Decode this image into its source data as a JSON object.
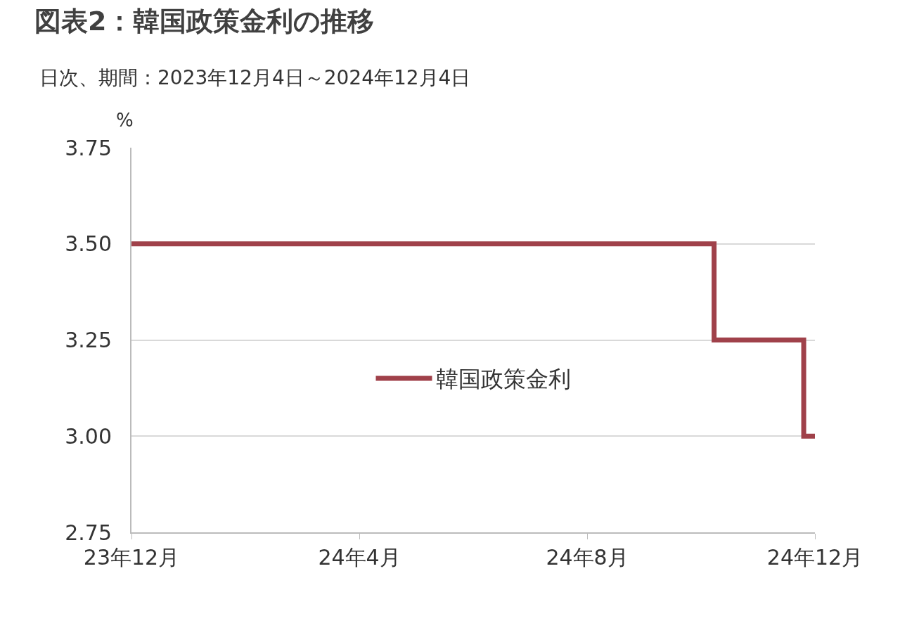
{
  "chart_data": {
    "type": "step",
    "title": "図表2：韓国政策金利の推移",
    "subtitle": "日次、期間：2023年12月4日～2024年12月4日",
    "ylabel": "%",
    "x": [
      "2023-12-04",
      "2024-10-11",
      "2024-11-28",
      "2024-12-04"
    ],
    "series": [
      {
        "name": "韓国政策金利",
        "color": "#a0414a",
        "values": [
          3.5,
          3.25,
          3.0,
          3.0
        ]
      }
    ],
    "xlim": [
      "2023-12-04",
      "2024-12-04"
    ],
    "xticks": [
      {
        "value": "2023-12-04",
        "label": "23年12月"
      },
      {
        "value": "2024-04-04",
        "label": "24年4月"
      },
      {
        "value": "2024-08-04",
        "label": "24年8月"
      },
      {
        "value": "2024-12-04",
        "label": "24年12月"
      }
    ],
    "ylim": [
      2.75,
      3.75
    ],
    "yticks": [
      {
        "value": 2.75,
        "label": "2.75"
      },
      {
        "value": 3.0,
        "label": "3.00"
      },
      {
        "value": 3.25,
        "label": "3.25"
      },
      {
        "value": 3.5,
        "label": "3.50"
      },
      {
        "value": 3.75,
        "label": "3.75"
      }
    ],
    "grid": "y",
    "legend": "center",
    "marker": "none",
    "line_style": "solid"
  }
}
